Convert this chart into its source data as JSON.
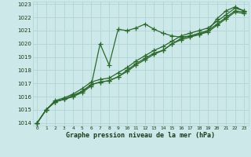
{
  "title": "Graphe pression niveau de la mer (hPa)",
  "bg_color": "#cce8e8",
  "grid_color": "#b0d4d4",
  "line_color": "#2d6a2d",
  "xlim": [
    -0.5,
    23.5
  ],
  "ylim": [
    1013.8,
    1023.2
  ],
  "xticks": [
    0,
    1,
    2,
    3,
    4,
    5,
    6,
    7,
    8,
    9,
    10,
    11,
    12,
    13,
    14,
    15,
    16,
    17,
    18,
    19,
    20,
    21,
    22,
    23
  ],
  "yticks": [
    1014,
    1015,
    1016,
    1017,
    1018,
    1019,
    1020,
    1021,
    1022,
    1023
  ],
  "series": [
    [
      1014.0,
      1015.0,
      1015.6,
      1015.8,
      1016.0,
      1016.3,
      1016.8,
      1020.0,
      1018.4,
      1021.1,
      1021.0,
      1021.2,
      1021.5,
      1021.1,
      1020.8,
      1020.6,
      1020.5,
      1020.6,
      1020.7,
      1021.0,
      1021.9,
      1022.5,
      1022.8,
      1022.5
    ],
    [
      1014.0,
      1015.0,
      1015.6,
      1015.8,
      1016.1,
      1016.4,
      1016.9,
      1017.1,
      1017.2,
      1017.5,
      1018.0,
      1018.5,
      1018.9,
      1019.3,
      1019.5,
      1020.0,
      1020.4,
      1020.6,
      1020.8,
      1021.0,
      1021.5,
      1022.0,
      1022.5,
      1022.4
    ],
    [
      1014.0,
      1015.0,
      1015.7,
      1015.9,
      1016.2,
      1016.6,
      1017.1,
      1017.3,
      1017.4,
      1017.8,
      1018.2,
      1018.7,
      1019.1,
      1019.5,
      1019.8,
      1020.2,
      1020.6,
      1020.8,
      1021.0,
      1021.2,
      1021.7,
      1022.2,
      1022.7,
      1022.5
    ],
    [
      1014.0,
      1015.0,
      1015.6,
      1015.8,
      1016.0,
      1016.4,
      1016.9,
      1017.1,
      1017.2,
      1017.5,
      1017.9,
      1018.4,
      1018.8,
      1019.2,
      1019.5,
      1020.0,
      1020.3,
      1020.5,
      1020.7,
      1020.9,
      1021.4,
      1021.9,
      1022.4,
      1022.3
    ]
  ]
}
